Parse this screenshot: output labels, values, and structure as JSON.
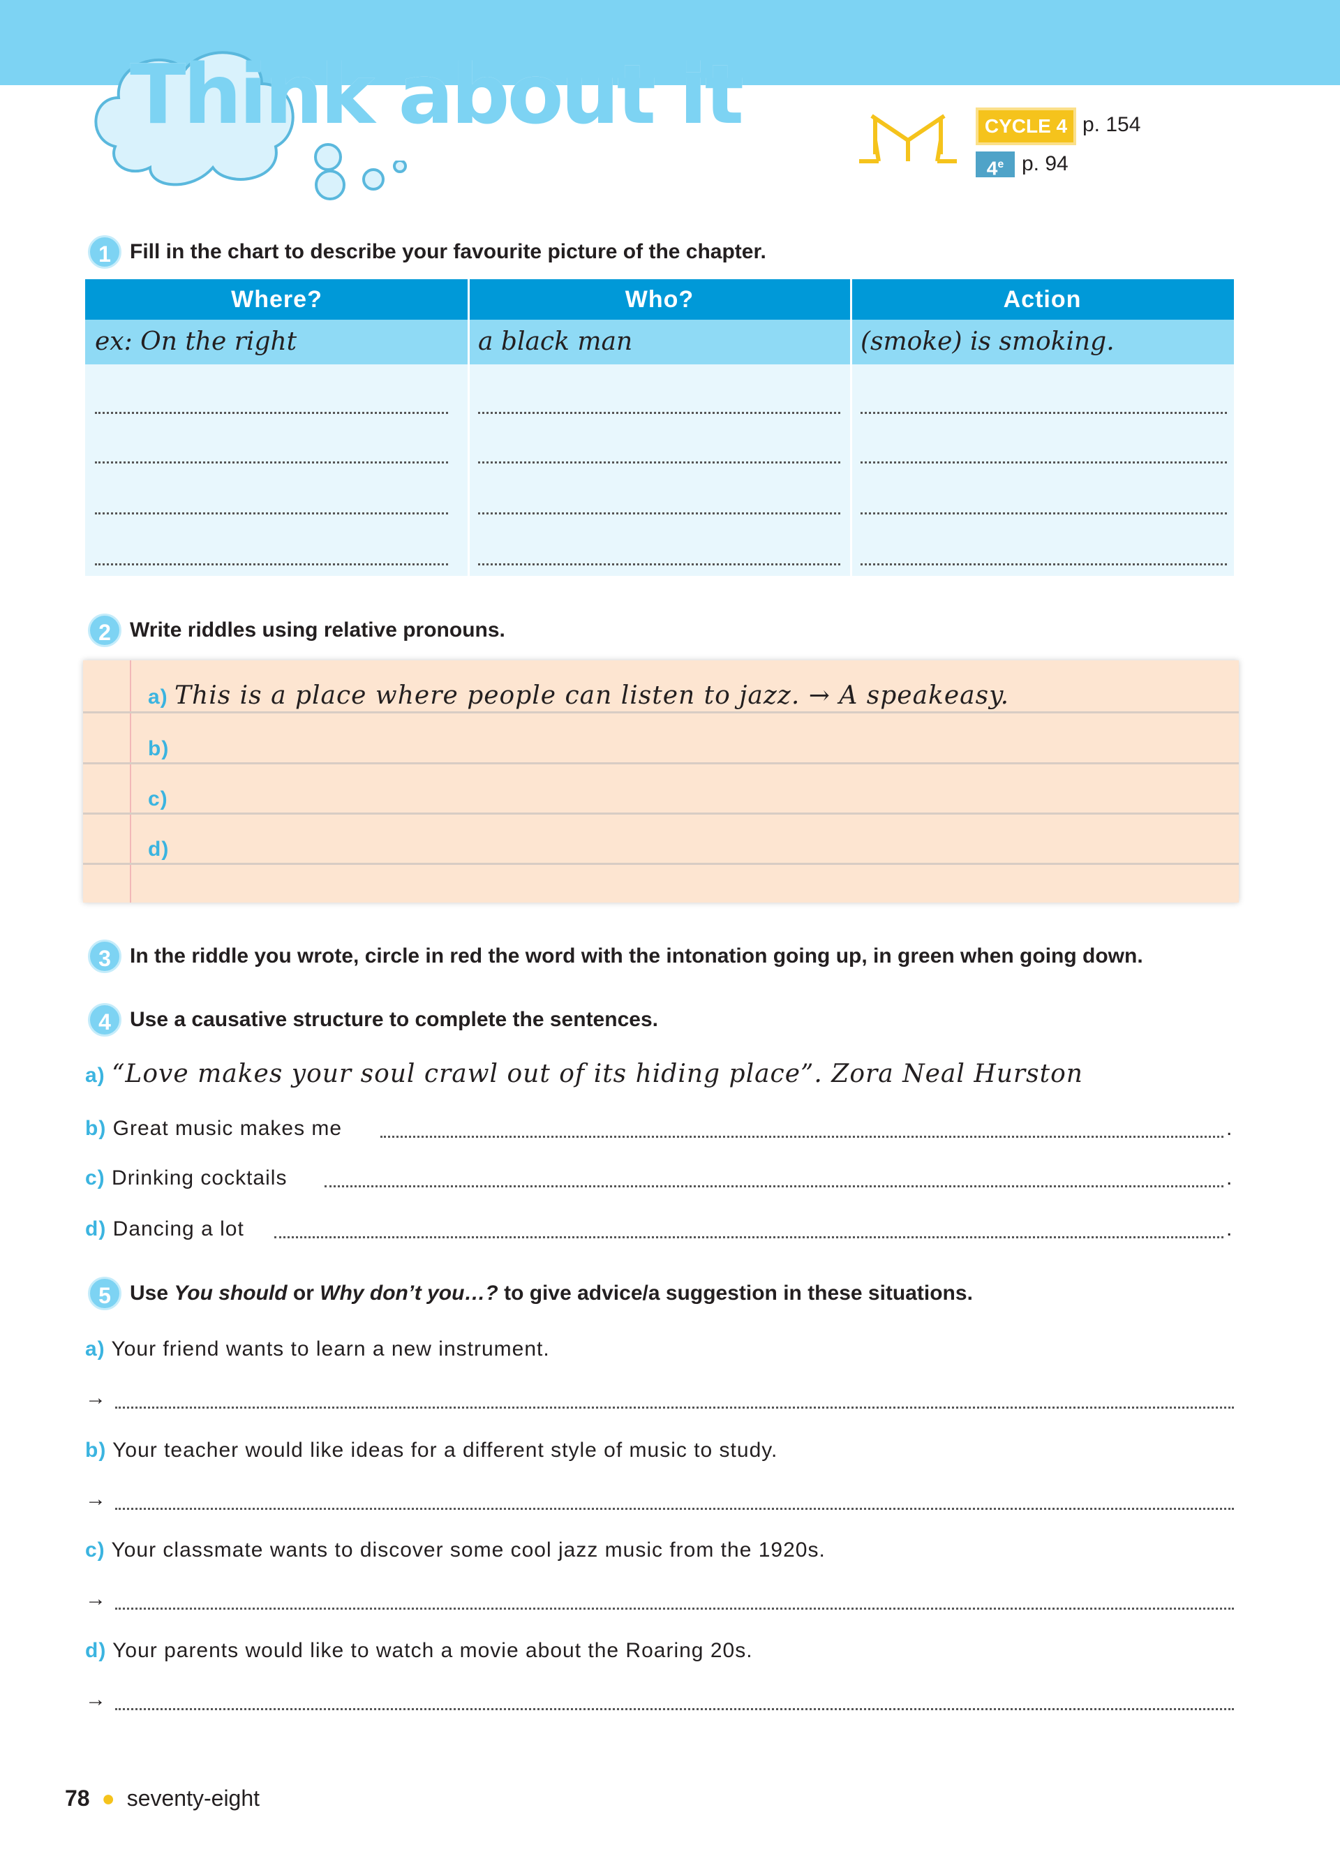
{
  "header": {
    "title_part1": "Think",
    "title_part2": " about it",
    "cycle_badge": "CYCLE 4",
    "cycle_page": "p. 154",
    "grade_badge": "4",
    "grade_sup": "e",
    "grade_page": "p. 94",
    "colors": {
      "band": "#7dd3f3",
      "cycle": "#f5c31c",
      "grade": "#4fa3c8"
    }
  },
  "q1": {
    "number": "1",
    "instruction": "Fill in the chart to describe your favourite picture of the chapter.",
    "columns": [
      "Where?",
      "Who?",
      "Action"
    ],
    "example": [
      "ex: On the right",
      "a black man",
      "(smoke) is smoking."
    ]
  },
  "q2": {
    "number": "2",
    "instruction": "Write riddles using relative pronouns.",
    "items": [
      {
        "label": "a)",
        "text": "This is a place where people can listen to jazz. → A speakeasy."
      },
      {
        "label": "b)",
        "text": ""
      },
      {
        "label": "c)",
        "text": ""
      },
      {
        "label": "d)",
        "text": ""
      }
    ]
  },
  "q3": {
    "number": "3",
    "instruction": "In the riddle you wrote, circle in red the word with the intonation going up, in green when going down."
  },
  "q4": {
    "number": "4",
    "instruction": "Use a causative structure to complete the sentences.",
    "items": [
      {
        "label": "a)",
        "text": "“Love makes your soul crawl out of its hiding place”. Zora Neal Hurston"
      },
      {
        "label": "b)",
        "text": "Great music makes me"
      },
      {
        "label": "c)",
        "text": "Drinking cocktails"
      },
      {
        "label": "d)",
        "text": "Dancing a lot"
      }
    ],
    "end": "."
  },
  "q5": {
    "number": "5",
    "instruction_pre": "Use ",
    "em1": "You should",
    "mid": " or ",
    "em2": "Why don’t you…?",
    "instruction_post": " to give advice/a suggestion in these situations.",
    "arrow": "→",
    "items": [
      {
        "label": "a)",
        "text": "Your friend wants to learn a new instrument."
      },
      {
        "label": "b)",
        "text": "Your teacher would like ideas for a different style of music to study."
      },
      {
        "label": "c)",
        "text": "Your classmate wants to discover some cool jazz music from the 1920s."
      },
      {
        "label": "d)",
        "text": "Your parents would like to watch a movie about the Roaring 20s."
      }
    ]
  },
  "footer": {
    "page_number": "78",
    "page_words": "seventy-eight"
  }
}
